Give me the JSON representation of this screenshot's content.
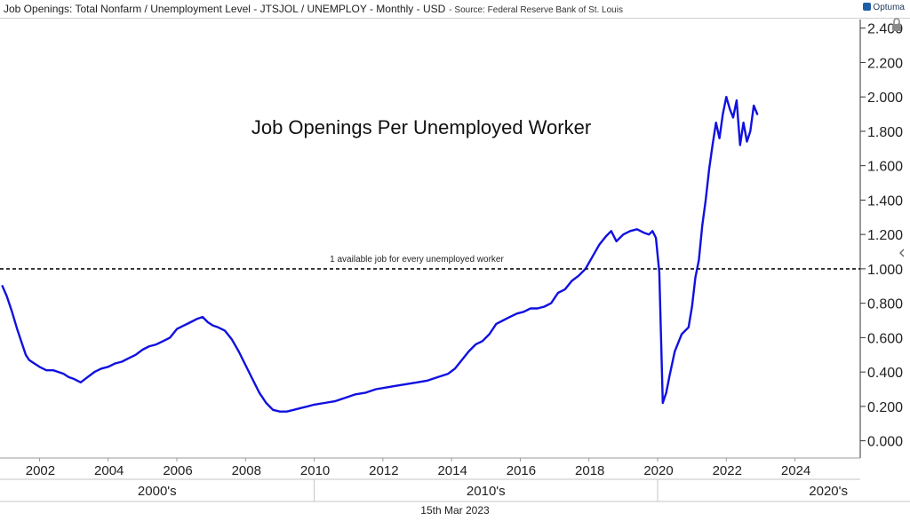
{
  "header": {
    "title": "Job Openings: Total Nonfarm / Unemployment Level - JTSJOL / UNEMPLOY - Monthly - USD",
    "source": "- Source: Federal Reserve Bank of St. Louis",
    "brand": "Optuma"
  },
  "footer": {
    "date": "15th Mar 2023"
  },
  "chart_data": {
    "type": "line",
    "title": "Job Openings Per Unemployed Worker",
    "reference_line": {
      "value": 1.0,
      "label": "1 available job for every unemployed worker",
      "style": "dashed"
    },
    "xlim": [
      2000.85,
      2025.9
    ],
    "ylim": [
      -0.1,
      2.45
    ],
    "y_axis_position": "right",
    "yticks": [
      0.0,
      0.2,
      0.4,
      0.6,
      0.8,
      1.0,
      1.2,
      1.4,
      1.6,
      1.8,
      2.0,
      2.2,
      2.4
    ],
    "ytick_labels": [
      "0.000",
      "0.200",
      "0.400",
      "0.600",
      "0.800",
      "1.000",
      "1.200",
      "1.400",
      "1.600",
      "1.800",
      "2.000",
      "2.200",
      "2.400"
    ],
    "xticks": [
      2002,
      2004,
      2006,
      2008,
      2010,
      2012,
      2014,
      2016,
      2018,
      2020,
      2022,
      2024
    ],
    "xtick_labels": [
      "2002",
      "2004",
      "2006",
      "2008",
      "2010",
      "2012",
      "2014",
      "2016",
      "2018",
      "2020",
      "2022",
      "2024"
    ],
    "decades": [
      {
        "label": "2000's",
        "start": 2000.85,
        "end": 2010.0
      },
      {
        "label": "2010's",
        "start": 2010.0,
        "end": 2020.0
      },
      {
        "label": "2020's",
        "start": 2020.0,
        "end": 2025.9
      }
    ],
    "grid": false,
    "colors": {
      "line": "#1010e0",
      "reference": "#111111",
      "axis": "#333333"
    },
    "series": [
      {
        "x": [
          2000.92,
          2001.05,
          2001.2,
          2001.35,
          2001.5,
          2001.6,
          2001.7,
          2001.85,
          2002.0,
          2002.2,
          2002.4,
          2002.55,
          2002.7,
          2002.85,
          2003.0,
          2003.2,
          2003.4,
          2003.6,
          2003.8,
          2004.0,
          2004.2,
          2004.4,
          2004.6,
          2004.8,
          2005.0,
          2005.2,
          2005.4,
          2005.6,
          2005.8,
          2006.0,
          2006.2,
          2006.4,
          2006.6,
          2006.75,
          2006.9,
          2007.05,
          2007.2,
          2007.4,
          2007.6,
          2007.8,
          2008.0,
          2008.2,
          2008.4,
          2008.6,
          2008.8,
          2009.0,
          2009.2,
          2009.4,
          2009.6,
          2009.8,
          2010.0,
          2010.3,
          2010.6,
          2010.9,
          2011.2,
          2011.5,
          2011.8,
          2012.1,
          2012.4,
          2012.7,
          2013.0,
          2013.3,
          2013.6,
          2013.9,
          2014.1,
          2014.3,
          2014.5,
          2014.7,
          2014.9,
          2015.1,
          2015.3,
          2015.5,
          2015.7,
          2015.9,
          2016.1,
          2016.3,
          2016.5,
          2016.7,
          2016.9,
          2017.1,
          2017.3,
          2017.5,
          2017.7,
          2017.9,
          2018.1,
          2018.3,
          2018.5,
          2018.65,
          2018.8,
          2019.0,
          2019.2,
          2019.4,
          2019.6,
          2019.75,
          2019.85,
          2019.95,
          2020.05,
          2020.15,
          2020.25,
          2020.35,
          2020.5,
          2020.7,
          2020.9,
          2021.0,
          2021.1,
          2021.2,
          2021.3,
          2021.4,
          2021.5,
          2021.6,
          2021.7,
          2021.8,
          2021.9,
          2022.0,
          2022.1,
          2022.2,
          2022.3,
          2022.4,
          2022.5,
          2022.6,
          2022.7,
          2022.8,
          2022.9
        ],
        "y": [
          0.9,
          0.84,
          0.75,
          0.65,
          0.56,
          0.5,
          0.47,
          0.45,
          0.43,
          0.41,
          0.41,
          0.4,
          0.39,
          0.37,
          0.36,
          0.34,
          0.37,
          0.4,
          0.42,
          0.43,
          0.45,
          0.46,
          0.48,
          0.5,
          0.53,
          0.55,
          0.56,
          0.58,
          0.6,
          0.65,
          0.67,
          0.69,
          0.71,
          0.72,
          0.69,
          0.67,
          0.66,
          0.64,
          0.59,
          0.52,
          0.44,
          0.36,
          0.28,
          0.22,
          0.18,
          0.17,
          0.17,
          0.18,
          0.19,
          0.2,
          0.21,
          0.22,
          0.23,
          0.25,
          0.27,
          0.28,
          0.3,
          0.31,
          0.32,
          0.33,
          0.34,
          0.35,
          0.37,
          0.39,
          0.42,
          0.47,
          0.52,
          0.56,
          0.58,
          0.62,
          0.68,
          0.7,
          0.72,
          0.74,
          0.75,
          0.77,
          0.77,
          0.78,
          0.8,
          0.86,
          0.88,
          0.93,
          0.96,
          1.0,
          1.07,
          1.14,
          1.19,
          1.22,
          1.16,
          1.2,
          1.22,
          1.23,
          1.21,
          1.2,
          1.22,
          1.18,
          0.98,
          0.22,
          0.28,
          0.38,
          0.52,
          0.62,
          0.66,
          0.78,
          0.95,
          1.05,
          1.25,
          1.4,
          1.58,
          1.72,
          1.85,
          1.76,
          1.9,
          2.0,
          1.93,
          1.88,
          1.98,
          1.72,
          1.85,
          1.74,
          1.8,
          1.95,
          1.9
        ]
      }
    ]
  }
}
